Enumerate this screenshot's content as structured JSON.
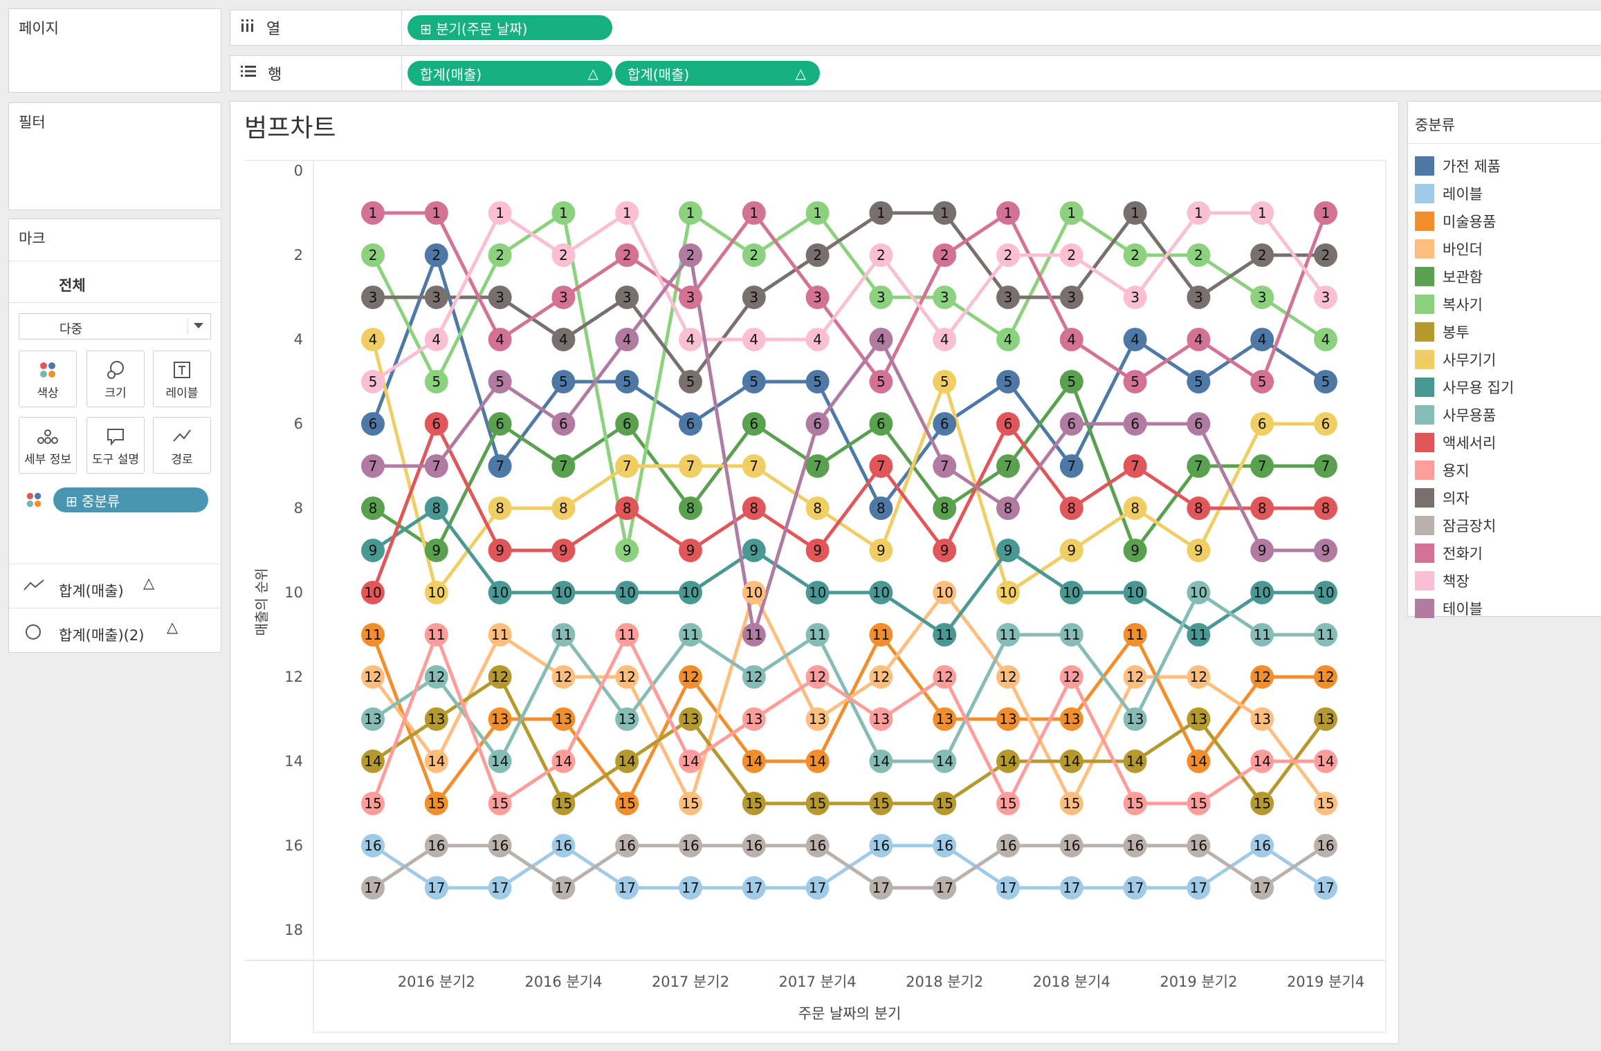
{
  "panels": {
    "pages": "페이지",
    "filters": "필터",
    "marks": "마크"
  },
  "shelves": {
    "columns": {
      "label": "열",
      "icon": "columns-icon",
      "pills": [
        "⊞ 분기(주문 날짜)"
      ]
    },
    "rows": {
      "label": "행",
      "icon": "rows-icon",
      "pills": [
        "합계(매출)",
        "합계(매출)"
      ],
      "delta": "△"
    }
  },
  "marks": {
    "all": "전체",
    "type": "다중",
    "buttons": [
      {
        "label": "색상",
        "icon": "color-icon"
      },
      {
        "label": "크기",
        "icon": "size-icon"
      },
      {
        "label": "레이블",
        "icon": "label-icon"
      },
      {
        "label": "세부 정보",
        "icon": "detail-icon"
      },
      {
        "label": "도구 설명",
        "icon": "tooltip-icon"
      },
      {
        "label": "경로",
        "icon": "path-icon"
      }
    ],
    "color_pill": "⊞ 중분류",
    "measures": [
      {
        "label": "합계(매출)",
        "delta": "△",
        "icon": "line-icon"
      },
      {
        "label": "합계(매출)(2)",
        "delta": "△",
        "icon": "circle-icon"
      }
    ]
  },
  "legend": {
    "title": "중분류",
    "items": [
      {
        "name": "가전 제품",
        "color": "#4e79a7"
      },
      {
        "name": "레이블",
        "color": "#a0cbe8"
      },
      {
        "name": "미술용품",
        "color": "#f28e2b"
      },
      {
        "name": "바인더",
        "color": "#ffbe7d"
      },
      {
        "name": "보관함",
        "color": "#59a14f"
      },
      {
        "name": "복사기",
        "color": "#8cd17d"
      },
      {
        "name": "봉투",
        "color": "#b6992d"
      },
      {
        "name": "사무기기",
        "color": "#f1ce63"
      },
      {
        "name": "사무용 집기",
        "color": "#499894"
      },
      {
        "name": "사무용품",
        "color": "#86bcb6"
      },
      {
        "name": "액세서리",
        "color": "#e15759"
      },
      {
        "name": "용지",
        "color": "#ff9d9a"
      },
      {
        "name": "의자",
        "color": "#79706e"
      },
      {
        "name": "잠금장치",
        "color": "#bab0ac"
      },
      {
        "name": "전화기",
        "color": "#d37295"
      },
      {
        "name": "책장",
        "color": "#fabfd2"
      },
      {
        "name": "테이블",
        "color": "#b07aa1"
      }
    ]
  },
  "chart_data": {
    "type": "line",
    "title": "범프차트",
    "xlabel": "주문 날짜의 분기",
    "ylabel": "매출의 순위",
    "ylim": [
      0,
      18
    ],
    "y_reversed": true,
    "y_ticks": [
      0,
      2,
      4,
      6,
      8,
      10,
      12,
      14,
      16,
      18
    ],
    "x_tick_labels": [
      "2016 분기2",
      "2016 분기4",
      "2017 분기2",
      "2017 분기4",
      "2018 분기2",
      "2018 분기4",
      "2019 분기2",
      "2019 분기4"
    ],
    "x": [
      "2016 분기1",
      "2016 분기2",
      "2016 분기3",
      "2016 분기4",
      "2017 분기1",
      "2017 분기2",
      "2017 분기3",
      "2017 분기4",
      "2018 분기1",
      "2018 분기2",
      "2018 분기3",
      "2018 분기4",
      "2019 분기1",
      "2019 분기2",
      "2019 분기3",
      "2019 분기4"
    ],
    "series": [
      {
        "name": "가전 제품",
        "values": [
          6,
          2,
          7,
          5,
          5,
          6,
          5,
          5,
          8,
          6,
          5,
          7,
          4,
          5,
          4,
          5
        ]
      },
      {
        "name": "레이블",
        "values": [
          16,
          17,
          17,
          16,
          17,
          17,
          17,
          17,
          16,
          16,
          17,
          17,
          17,
          17,
          16,
          17
        ]
      },
      {
        "name": "미술용품",
        "values": [
          11,
          15,
          13,
          13,
          15,
          12,
          14,
          14,
          11,
          13,
          13,
          13,
          11,
          14,
          12,
          12
        ]
      },
      {
        "name": "바인더",
        "values": [
          12,
          14,
          11,
          12,
          12,
          15,
          10,
          13,
          12,
          10,
          12,
          15,
          12,
          12,
          13,
          15
        ]
      },
      {
        "name": "보관함",
        "values": [
          8,
          9,
          6,
          7,
          6,
          8,
          6,
          7,
          6,
          8,
          7,
          5,
          9,
          7,
          7,
          7
        ]
      },
      {
        "name": "복사기",
        "values": [
          2,
          5,
          2,
          1,
          9,
          1,
          2,
          1,
          3,
          3,
          4,
          1,
          2,
          2,
          3,
          4
        ]
      },
      {
        "name": "봉투",
        "values": [
          14,
          13,
          12,
          15,
          14,
          13,
          15,
          15,
          15,
          15,
          14,
          14,
          14,
          13,
          15,
          13
        ]
      },
      {
        "name": "사무기기",
        "values": [
          4,
          10,
          8,
          8,
          7,
          7,
          7,
          8,
          9,
          5,
          10,
          9,
          8,
          9,
          6,
          6
        ]
      },
      {
        "name": "사무용 집기",
        "values": [
          9,
          8,
          10,
          10,
          10,
          10,
          9,
          10,
          10,
          11,
          9,
          10,
          10,
          11,
          10,
          10
        ]
      },
      {
        "name": "사무용품",
        "values": [
          13,
          12,
          14,
          11,
          13,
          11,
          12,
          11,
          14,
          14,
          11,
          11,
          13,
          10,
          11,
          11
        ]
      },
      {
        "name": "액세서리",
        "values": [
          10,
          6,
          9,
          9,
          8,
          9,
          8,
          9,
          7,
          9,
          6,
          8,
          7,
          8,
          8,
          8
        ]
      },
      {
        "name": "용지",
        "values": [
          15,
          11,
          15,
          14,
          11,
          14,
          13,
          12,
          13,
          12,
          15,
          12,
          15,
          15,
          14,
          14
        ]
      },
      {
        "name": "의자",
        "values": [
          3,
          3,
          3,
          4,
          3,
          5,
          3,
          2,
          1,
          1,
          3,
          3,
          1,
          3,
          2,
          2
        ]
      },
      {
        "name": "잠금장치",
        "values": [
          17,
          16,
          16,
          17,
          16,
          16,
          16,
          16,
          17,
          17,
          16,
          16,
          16,
          16,
          17,
          16
        ]
      },
      {
        "name": "전화기",
        "values": [
          1,
          1,
          4,
          3,
          2,
          3,
          1,
          3,
          5,
          2,
          1,
          4,
          5,
          4,
          5,
          1
        ]
      },
      {
        "name": "책장",
        "values": [
          5,
          4,
          1,
          2,
          1,
          4,
          4,
          4,
          2,
          4,
          2,
          2,
          3,
          1,
          1,
          3
        ]
      },
      {
        "name": "테이블",
        "values": [
          7,
          7,
          5,
          6,
          4,
          2,
          11,
          6,
          4,
          7,
          8,
          6,
          6,
          6,
          9,
          9
        ]
      }
    ]
  }
}
